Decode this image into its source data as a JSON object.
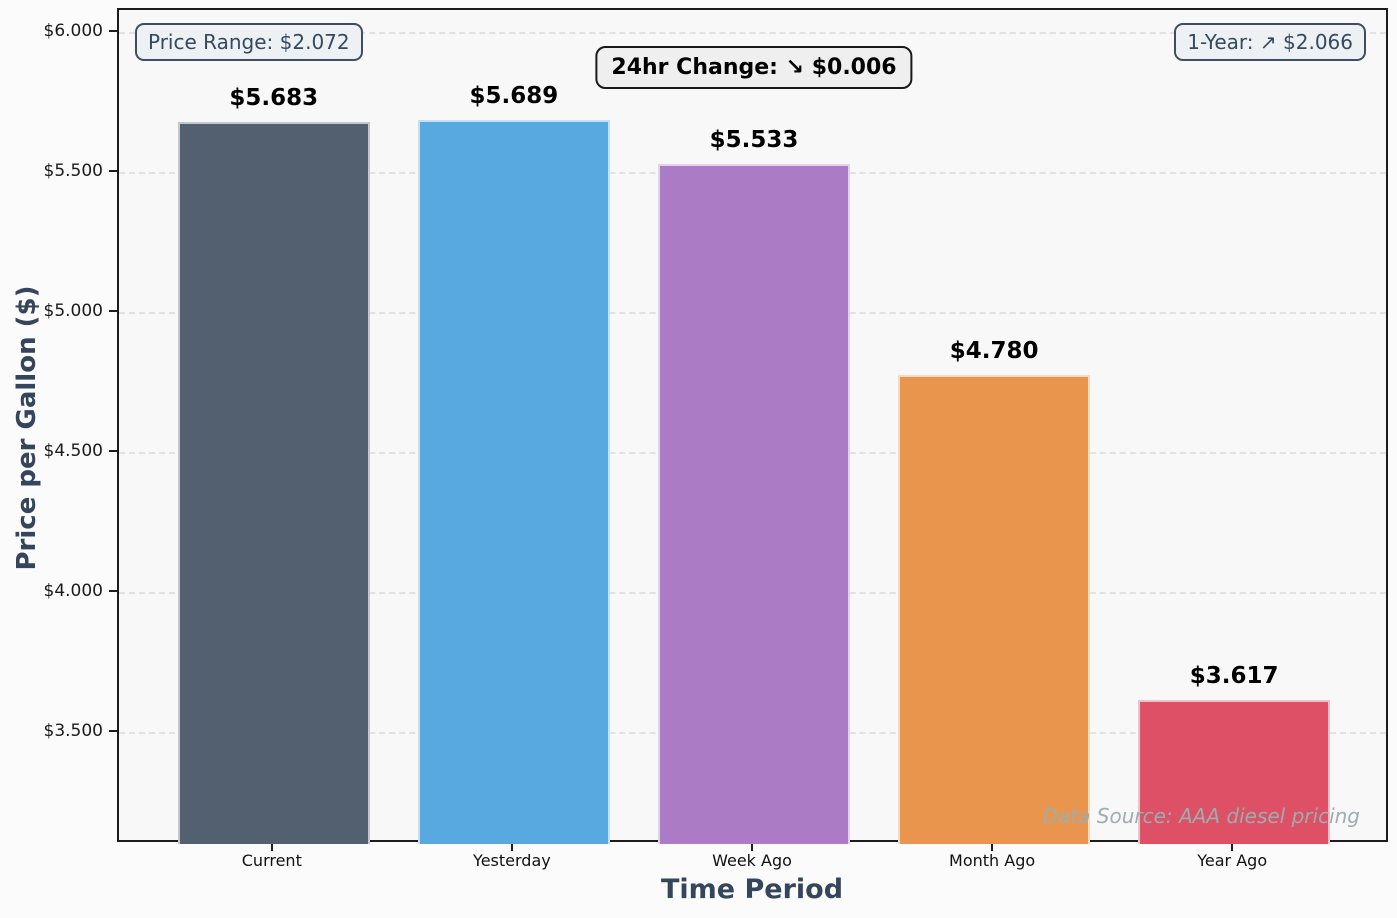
{
  "chart_data": {
    "type": "bar",
    "title": "",
    "xlabel": "Time Period",
    "ylabel": "Price per Gallon ($)",
    "categories": [
      "Current",
      "Yesterday",
      "Week Ago",
      "Month Ago",
      "Year Ago"
    ],
    "values": [
      5.683,
      5.689,
      5.533,
      4.78,
      3.617
    ],
    "value_labels": [
      "$5.683",
      "$5.689",
      "$5.533",
      "$4.780",
      "$3.617"
    ],
    "bar_colors": [
      "#536070",
      "#58a9e0",
      "#ac7bc6",
      "#ea954d",
      "#dd5066"
    ],
    "ylim": [
      3.103,
      6.082
    ],
    "yticks": [
      3.5,
      4.0,
      4.5,
      5.0,
      5.5,
      6.0
    ],
    "ytick_labels": [
      "$3.500",
      "$4.000",
      "$4.500",
      "$5.000",
      "$5.500",
      "$6.000"
    ],
    "grid": "horizontal dashed",
    "legend": "none",
    "annotations": {
      "price_range": "Price Range: $2.072",
      "change_24hr": "24hr Change: ↘ $0.006",
      "one_year": "1-Year: ↗ $2.066",
      "data_source": "Data Source: AAA diesel pricing"
    }
  }
}
